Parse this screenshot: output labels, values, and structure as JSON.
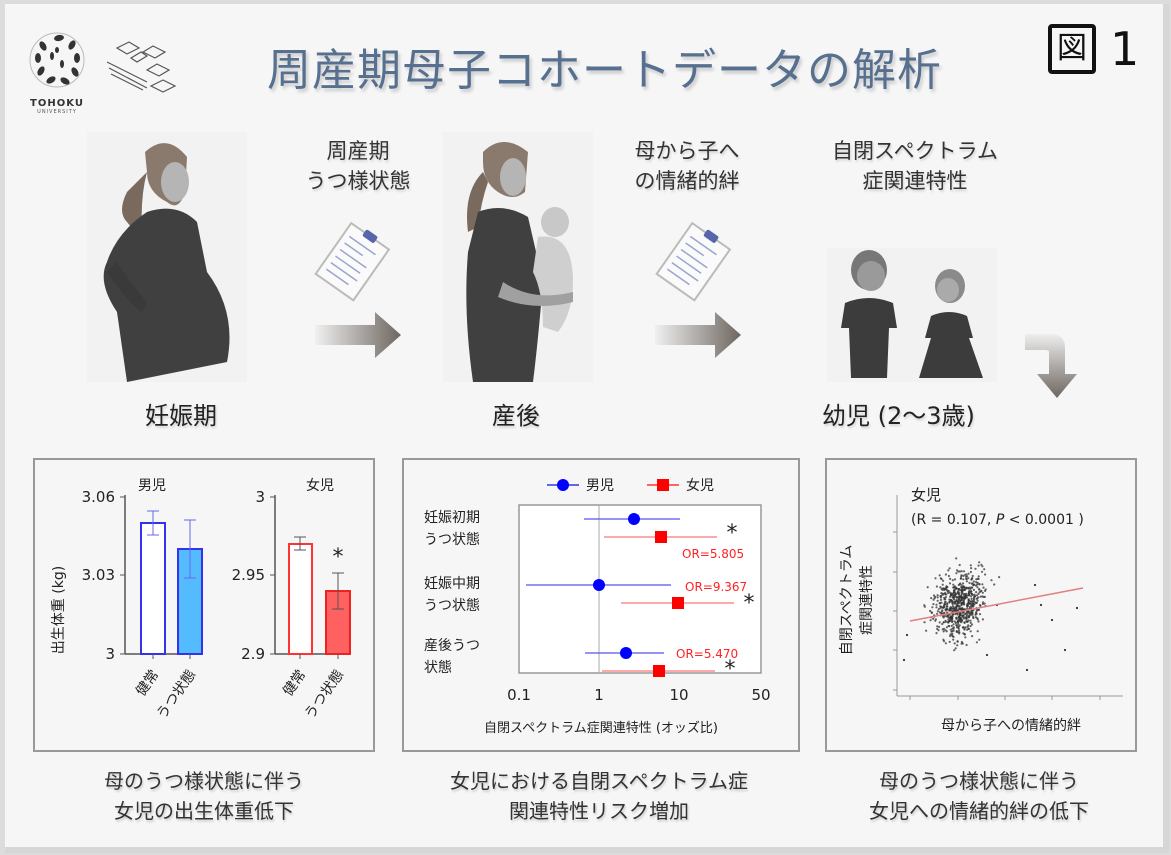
{
  "header": {
    "title": "周産期母子コホートデータの解析",
    "figure_label": "図",
    "figure_number": "1",
    "logo_university": "TOHOKU",
    "logo_university_sub": "UNIVERSITY"
  },
  "timeline": {
    "stages": [
      {
        "label": "妊娠期"
      },
      {
        "label": "産後"
      },
      {
        "label": "幼児 (2〜3歳)"
      }
    ],
    "transitions": [
      {
        "label_line1": "周産期",
        "label_line2": "うつ様状態"
      },
      {
        "label_line1": "母から子へ",
        "label_line2": "の情緒的絆"
      }
    ],
    "outcome": {
      "label_line1": "自閉スペクトラム",
      "label_line2": "症関連特性"
    }
  },
  "captions": [
    {
      "line1": "母のうつ様状態に伴う",
      "line2": "女児の出生体重低下"
    },
    {
      "line1": "女児における自閉スペクトラム症",
      "line2": "関連特性リスク増加"
    },
    {
      "line1": "母のうつ様状態に伴う",
      "line2": "女児への情緒的絆の低下"
    }
  ],
  "colors": {
    "title": "#57708f",
    "boy": "#0000ff",
    "boy_fill": "#55bbff",
    "girl": "#ff0000",
    "girl_fill": "#ff6060",
    "regression_line": "#e08080"
  },
  "chart_data": [
    {
      "type": "bar",
      "title": "男児",
      "ylabel": "出生体重 (kg)",
      "categories": [
        "健常",
        "うつ状態"
      ],
      "values": [
        3.05,
        3.04
      ],
      "error": [
        0.004,
        0.011
      ],
      "ylim": [
        3.0,
        3.06
      ],
      "yticks": [
        "3",
        "3.03",
        "3.06"
      ],
      "significance": [
        null,
        null
      ]
    },
    {
      "type": "bar",
      "title": "女児",
      "categories": [
        "健常",
        "うつ状態"
      ],
      "values": [
        2.97,
        2.94
      ],
      "error": [
        0.004,
        0.012
      ],
      "ylim": [
        2.9,
        3.0
      ],
      "yticks": [
        "2.9",
        "2.95",
        "3"
      ],
      "significance": [
        null,
        "*"
      ]
    },
    {
      "type": "scatter",
      "subtype": "forest",
      "xlabel": "自閉スペクトラム症関連特性 (オッズ比)",
      "xscale": "log",
      "xlim": [
        0.1,
        50
      ],
      "xticks": [
        "0.1",
        "1",
        "10",
        "50"
      ],
      "legend": [
        "男児",
        "女児"
      ],
      "categories": [
        {
          "line1": "妊娠初期",
          "line2": "うつ状態"
        },
        {
          "line1": "妊娠中期",
          "line2": "うつ状態"
        },
        {
          "line1": "産後うつ",
          "line2": "状態"
        }
      ],
      "series": [
        {
          "name": "男児",
          "or": [
            2.6,
            1.0,
            2.1
          ],
          "ci_low": [
            0.6,
            0.12,
            0.62
          ],
          "ci_high": [
            10.0,
            7.8,
            6.5
          ]
        },
        {
          "name": "女児",
          "or": [
            5.805,
            9.367,
            5.47
          ],
          "ci_low": [
            1.15,
            1.8,
            1.1
          ],
          "ci_high": [
            27,
            42,
            25
          ]
        }
      ],
      "annotations": [
        "OR=5.805",
        "OR=9.367",
        "OR=5.470"
      ],
      "significance": [
        "*",
        "*",
        "*"
      ]
    },
    {
      "type": "scatter",
      "title": "女児",
      "stat_text_pre": "(R = 0.107, ",
      "stat_p": "P",
      "stat_text_post": " < 0.0001 )",
      "xlabel": "母から子への情緒的絆",
      "ylabel_line1": "自閉スペクトラム",
      "ylabel_line2": "症関連特性",
      "r": 0.107,
      "p": "< 0.0001",
      "trend": "positive linear regression line"
    }
  ]
}
